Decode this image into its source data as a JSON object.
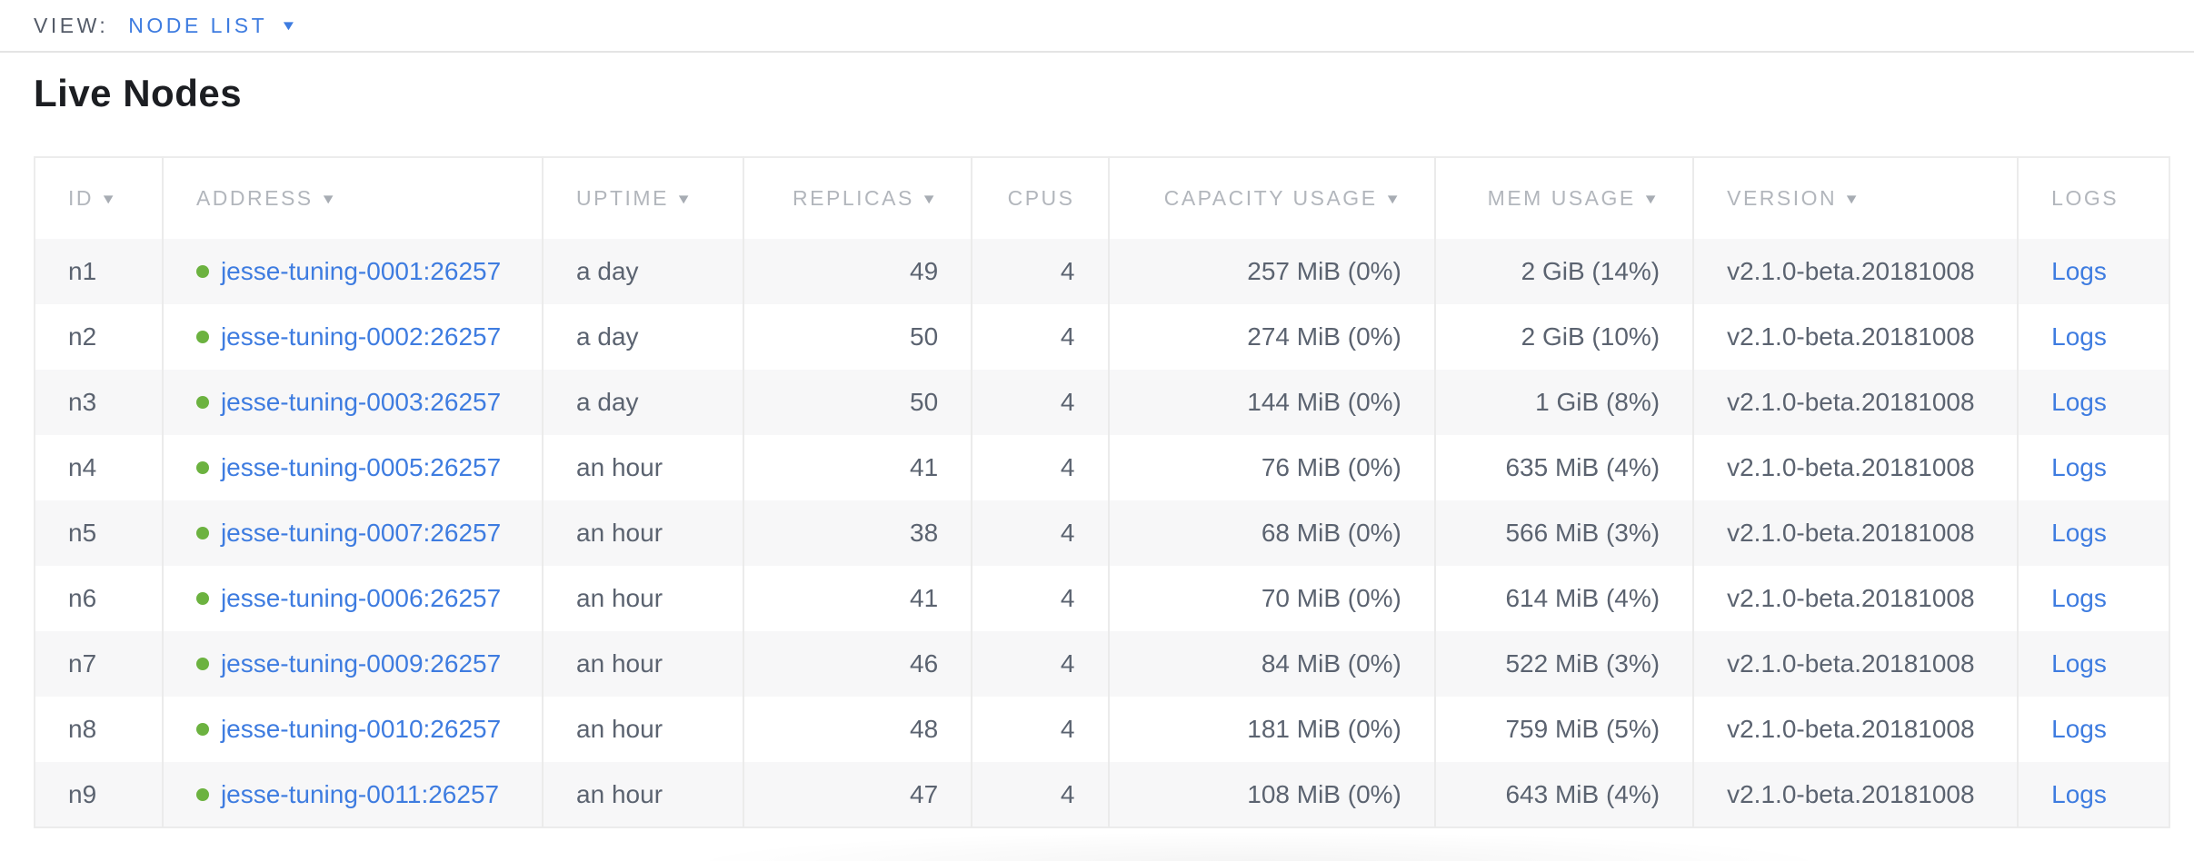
{
  "view_bar": {
    "label": "VIEW:",
    "selected": "NODE LIST",
    "caret_icon": "caret-down"
  },
  "page": {
    "title": "Live Nodes"
  },
  "colors": {
    "link_blue": "#3e7ce0",
    "status_green": "#6cb240",
    "header_text": "#b2b6bc",
    "body_text": "#5b6370",
    "row_stripe": "#f7f7f8",
    "border": "#ebebeb",
    "divider": "#e4e4e4",
    "title_text": "#1c1e22",
    "view_label_text": "#545b68"
  },
  "table": {
    "status_icon": "green-dot",
    "logs_label": "Logs",
    "sort_icon": "▼",
    "columns": [
      {
        "key": "id",
        "label": "ID",
        "sortable": true
      },
      {
        "key": "address",
        "label": "ADDRESS",
        "sortable": true
      },
      {
        "key": "uptime",
        "label": "UPTIME",
        "sortable": true
      },
      {
        "key": "replicas",
        "label": "REPLICAS",
        "sortable": true
      },
      {
        "key": "cpus",
        "label": "CPUS",
        "sortable": false
      },
      {
        "key": "capacity",
        "label": "CAPACITY USAGE",
        "sortable": true
      },
      {
        "key": "mem",
        "label": "MEM USAGE",
        "sortable": true
      },
      {
        "key": "version",
        "label": "VERSION",
        "sortable": true
      },
      {
        "key": "logs",
        "label": "LOGS",
        "sortable": false
      }
    ],
    "rows": [
      {
        "id": "n1",
        "address": "jesse-tuning-0001:26257",
        "uptime": "a day",
        "replicas": "49",
        "cpus": "4",
        "capacity": "257 MiB (0%)",
        "mem": "2 GiB (14%)",
        "version": "v2.1.0-beta.20181008",
        "logs": "Logs"
      },
      {
        "id": "n2",
        "address": "jesse-tuning-0002:26257",
        "uptime": "a day",
        "replicas": "50",
        "cpus": "4",
        "capacity": "274 MiB (0%)",
        "mem": "2 GiB (10%)",
        "version": "v2.1.0-beta.20181008",
        "logs": "Logs"
      },
      {
        "id": "n3",
        "address": "jesse-tuning-0003:26257",
        "uptime": "a day",
        "replicas": "50",
        "cpus": "4",
        "capacity": "144 MiB (0%)",
        "mem": "1 GiB (8%)",
        "version": "v2.1.0-beta.20181008",
        "logs": "Logs"
      },
      {
        "id": "n4",
        "address": "jesse-tuning-0005:26257",
        "uptime": "an hour",
        "replicas": "41",
        "cpus": "4",
        "capacity": "76 MiB (0%)",
        "mem": "635 MiB (4%)",
        "version": "v2.1.0-beta.20181008",
        "logs": "Logs"
      },
      {
        "id": "n5",
        "address": "jesse-tuning-0007:26257",
        "uptime": "an hour",
        "replicas": "38",
        "cpus": "4",
        "capacity": "68 MiB (0%)",
        "mem": "566 MiB (3%)",
        "version": "v2.1.0-beta.20181008",
        "logs": "Logs"
      },
      {
        "id": "n6",
        "address": "jesse-tuning-0006:26257",
        "uptime": "an hour",
        "replicas": "41",
        "cpus": "4",
        "capacity": "70 MiB (0%)",
        "mem": "614 MiB (4%)",
        "version": "v2.1.0-beta.20181008",
        "logs": "Logs"
      },
      {
        "id": "n7",
        "address": "jesse-tuning-0009:26257",
        "uptime": "an hour",
        "replicas": "46",
        "cpus": "4",
        "capacity": "84 MiB (0%)",
        "mem": "522 MiB (3%)",
        "version": "v2.1.0-beta.20181008",
        "logs": "Logs"
      },
      {
        "id": "n8",
        "address": "jesse-tuning-0010:26257",
        "uptime": "an hour",
        "replicas": "48",
        "cpus": "4",
        "capacity": "181 MiB (0%)",
        "mem": "759 MiB (5%)",
        "version": "v2.1.0-beta.20181008",
        "logs": "Logs"
      },
      {
        "id": "n9",
        "address": "jesse-tuning-0011:26257",
        "uptime": "an hour",
        "replicas": "47",
        "cpus": "4",
        "capacity": "108 MiB (0%)",
        "mem": "643 MiB (4%)",
        "version": "v2.1.0-beta.20181008",
        "logs": "Logs"
      }
    ]
  }
}
